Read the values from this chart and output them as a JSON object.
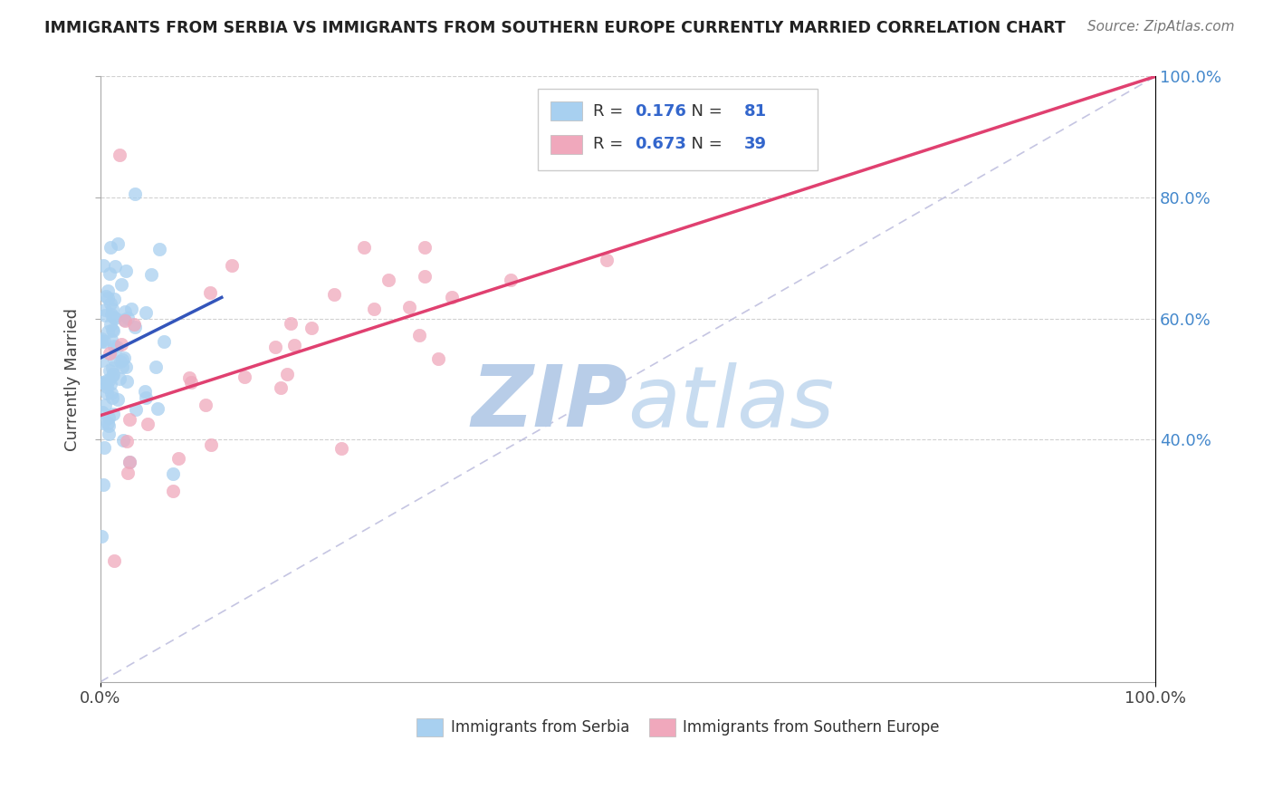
{
  "title": "IMMIGRANTS FROM SERBIA VS IMMIGRANTS FROM SOUTHERN EUROPE CURRENTLY MARRIED CORRELATION CHART",
  "source": "Source: ZipAtlas.com",
  "ylabel_left": "Currently Married",
  "legend_r1_val": "0.176",
  "legend_n1_val": "81",
  "legend_r2_val": "0.673",
  "legend_n2_val": "39",
  "color_serbia": "#A8D0F0",
  "color_southern": "#F0A8BC",
  "color_serbia_line": "#3355BB",
  "color_southern_line": "#E04070",
  "color_ref_line": "#BBBBDD",
  "legend_label1": "Immigrants from Serbia",
  "legend_label2": "Immigrants from Southern Europe",
  "xmin": 0.0,
  "xmax": 1.0,
  "ymin": 0.0,
  "ymax": 1.0,
  "right_ytick_labels": [
    "40.0%",
    "60.0%",
    "80.0%",
    "100.0%"
  ],
  "right_ytick_vals": [
    0.4,
    0.6,
    0.8,
    1.0
  ],
  "watermark_zip": "ZIP",
  "watermark_atlas": "atlas",
  "watermark_color": "#C8DCF0",
  "background_color": "#FFFFFF",
  "grid_color": "#CCCCCC",
  "serbia_trend_x0": 0.0,
  "serbia_trend_x1": 0.115,
  "serbia_trend_y0": 0.535,
  "serbia_trend_y1": 0.635,
  "southern_trend_x0": 0.0,
  "southern_trend_x1": 1.0,
  "southern_trend_y0": 0.44,
  "southern_trend_y1": 1.0
}
